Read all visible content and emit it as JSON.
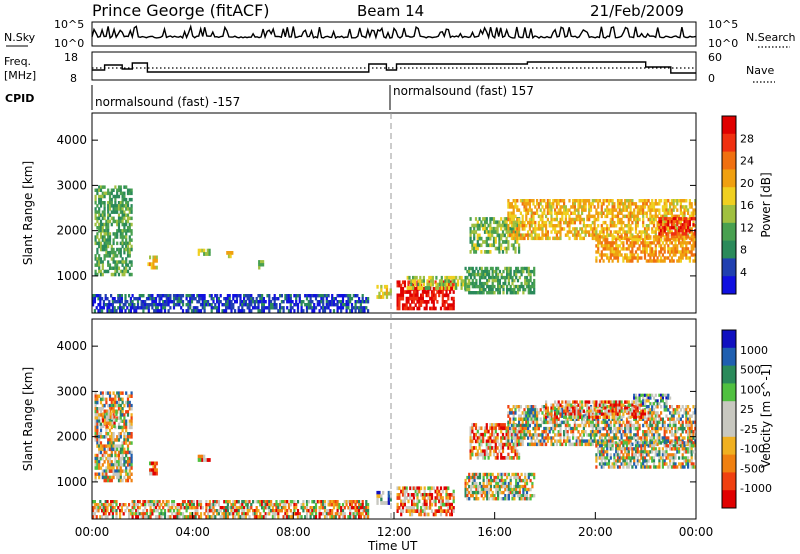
{
  "header": {
    "station": "Prince George (fitACF)",
    "beam": "Beam 14",
    "date": "21/Feb/2009"
  },
  "panels": {
    "nsky": {
      "label": "N.Sky",
      "left_ticks": [
        "10^5",
        "10^0"
      ],
      "right_ticks": [
        "10^5",
        "10^0"
      ],
      "right_label": "N.Search"
    },
    "freq": {
      "label_line1": "Freq.",
      "label_line2": "[MHz]",
      "left_ticks": [
        "18",
        "8"
      ],
      "right_ticks": [
        "60",
        "0"
      ],
      "right_label": "Nave"
    },
    "cpid": {
      "label": "CPID",
      "modes": [
        "normalsound (fast) -157",
        "normalsound (fast) 157"
      ]
    }
  },
  "colors": {
    "power_scale": [
      "#1010e0",
      "#2040b0",
      "#2a8a5a",
      "#48a050",
      "#a0c040",
      "#f0d020",
      "#f0a010",
      "#f07010",
      "#f03010",
      "#e00000"
    ],
    "velocity_scale": [
      "#e00000",
      "#f04010",
      "#f08010",
      "#f0b020",
      "#c8c8c0",
      "#c8c8c0",
      "#50c040",
      "#2a8a5a",
      "#1f5fb0",
      "#1010c0"
    ]
  },
  "chart_data": [
    {
      "type": "heatmap",
      "name": "power",
      "ylabel": "Slant Range [km]",
      "y_ticks": [
        "1000",
        "2000",
        "3000",
        "4000"
      ],
      "ylim": [
        180,
        4600
      ],
      "colorbar_label": "Power [dB]",
      "colorbar_ticks": [
        "4",
        "8",
        "12",
        "16",
        "20",
        "24",
        "28"
      ],
      "colorbar_range": [
        0,
        30
      ],
      "regions": [
        {
          "t0": 0.1,
          "t1": 1.6,
          "r0": 1000,
          "r1": 3000,
          "level": 10
        },
        {
          "t0": 2.2,
          "t1": 2.6,
          "r0": 1150,
          "r1": 1450,
          "level": 18
        },
        {
          "t0": 0.0,
          "t1": 11.0,
          "r0": 200,
          "r1": 600,
          "level": 4
        },
        {
          "t0": 4.2,
          "t1": 4.7,
          "r0": 1450,
          "r1": 1600,
          "level": 14
        },
        {
          "t0": 5.2,
          "t1": 5.6,
          "r0": 1400,
          "r1": 1550,
          "level": 16
        },
        {
          "t0": 6.6,
          "t1": 6.9,
          "r0": 1150,
          "r1": 1350,
          "level": 12
        },
        {
          "t0": 11.3,
          "t1": 11.9,
          "r0": 500,
          "r1": 800,
          "level": 16
        },
        {
          "t0": 12.1,
          "t1": 14.4,
          "r0": 250,
          "r1": 900,
          "level": 28
        },
        {
          "t0": 12.5,
          "t1": 15.0,
          "r0": 700,
          "r1": 1000,
          "level": 14
        },
        {
          "t0": 14.8,
          "t1": 17.6,
          "r0": 600,
          "r1": 1200,
          "level": 10
        },
        {
          "t0": 15.0,
          "t1": 17.0,
          "r0": 1500,
          "r1": 2300,
          "level": 12
        },
        {
          "t0": 16.5,
          "t1": 24.0,
          "r0": 1800,
          "r1": 2700,
          "level": 18
        },
        {
          "t0": 20.0,
          "t1": 24.0,
          "r0": 1300,
          "r1": 1900,
          "level": 20
        },
        {
          "t0": 22.5,
          "t1": 24.0,
          "r0": 1900,
          "r1": 2300,
          "level": 26
        }
      ]
    },
    {
      "type": "heatmap",
      "name": "velocity",
      "ylabel": "Slant Range [km]",
      "y_ticks": [
        "1000",
        "2000",
        "3000",
        "4000"
      ],
      "ylim": [
        180,
        4600
      ],
      "colorbar_label": "Velocity [m s^-1]",
      "colorbar_ticks": [
        "1000",
        "500",
        "100",
        "25",
        "-25",
        "-100",
        "-500",
        "-1000"
      ],
      "regions": [
        {
          "t0": 0.1,
          "t1": 1.6,
          "r0": 1000,
          "r1": 3000,
          "level": 0
        },
        {
          "t0": 0.4,
          "t1": 1.0,
          "r0": 2200,
          "r1": 2600,
          "level": -1
        },
        {
          "t0": 2.2,
          "t1": 2.6,
          "r0": 1150,
          "r1": 1450,
          "level": -2
        },
        {
          "t0": 0.0,
          "t1": 11.0,
          "r0": 200,
          "r1": 600,
          "level": -1
        },
        {
          "t0": 4.2,
          "t1": 4.7,
          "r0": 1450,
          "r1": 1600,
          "level": -2
        },
        {
          "t0": 11.3,
          "t1": 11.9,
          "r0": 500,
          "r1": 800,
          "level": 2
        },
        {
          "t0": 12.1,
          "t1": 14.4,
          "r0": 250,
          "r1": 900,
          "level": -2
        },
        {
          "t0": 14.8,
          "t1": 17.6,
          "r0": 600,
          "r1": 1200,
          "level": 0
        },
        {
          "t0": 15.0,
          "t1": 17.0,
          "r0": 1500,
          "r1": 2300,
          "level": -2
        },
        {
          "t0": 16.5,
          "t1": 24.0,
          "r0": 1800,
          "r1": 2700,
          "level": 0
        },
        {
          "t0": 18.0,
          "t1": 22.0,
          "r0": 2400,
          "r1": 2800,
          "level": -2
        },
        {
          "t0": 20.0,
          "t1": 24.0,
          "r0": 1300,
          "r1": 1900,
          "level": 0
        },
        {
          "t0": 21.5,
          "t1": 23.0,
          "r0": 2700,
          "r1": 2950,
          "level": 2
        }
      ]
    }
  ],
  "x_axis": {
    "label": "Time UT",
    "ticks": [
      "00:00",
      "04:00",
      "08:00",
      "12:00",
      "16:00",
      "20:00",
      "00:00"
    ],
    "range_hours": [
      0,
      24
    ]
  }
}
